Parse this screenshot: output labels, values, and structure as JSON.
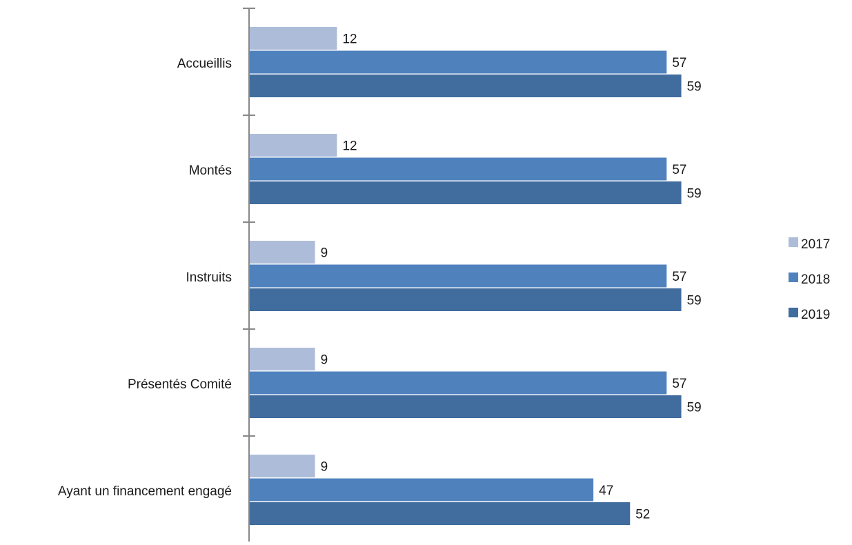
{
  "chart_data": {
    "type": "bar",
    "orientation": "horizontal",
    "title": "",
    "xlabel": "",
    "ylabel": "",
    "categories": [
      "Accueillis",
      "Montés",
      "Instruits",
      "Présentés Comité",
      "Ayant un financement engagé"
    ],
    "series": [
      {
        "name": "2017",
        "color": "#adbcd9",
        "values": [
          12,
          12,
          9,
          9,
          9
        ]
      },
      {
        "name": "2018",
        "color": "#4f81bd",
        "values": [
          57,
          57,
          57,
          57,
          47
        ]
      },
      {
        "name": "2019",
        "color": "#406c9e",
        "values": [
          59,
          59,
          59,
          59,
          52
        ]
      }
    ],
    "xlim": [
      0,
      66
    ],
    "grid": false,
    "data_labels": true,
    "legend": {
      "position": "right"
    }
  }
}
